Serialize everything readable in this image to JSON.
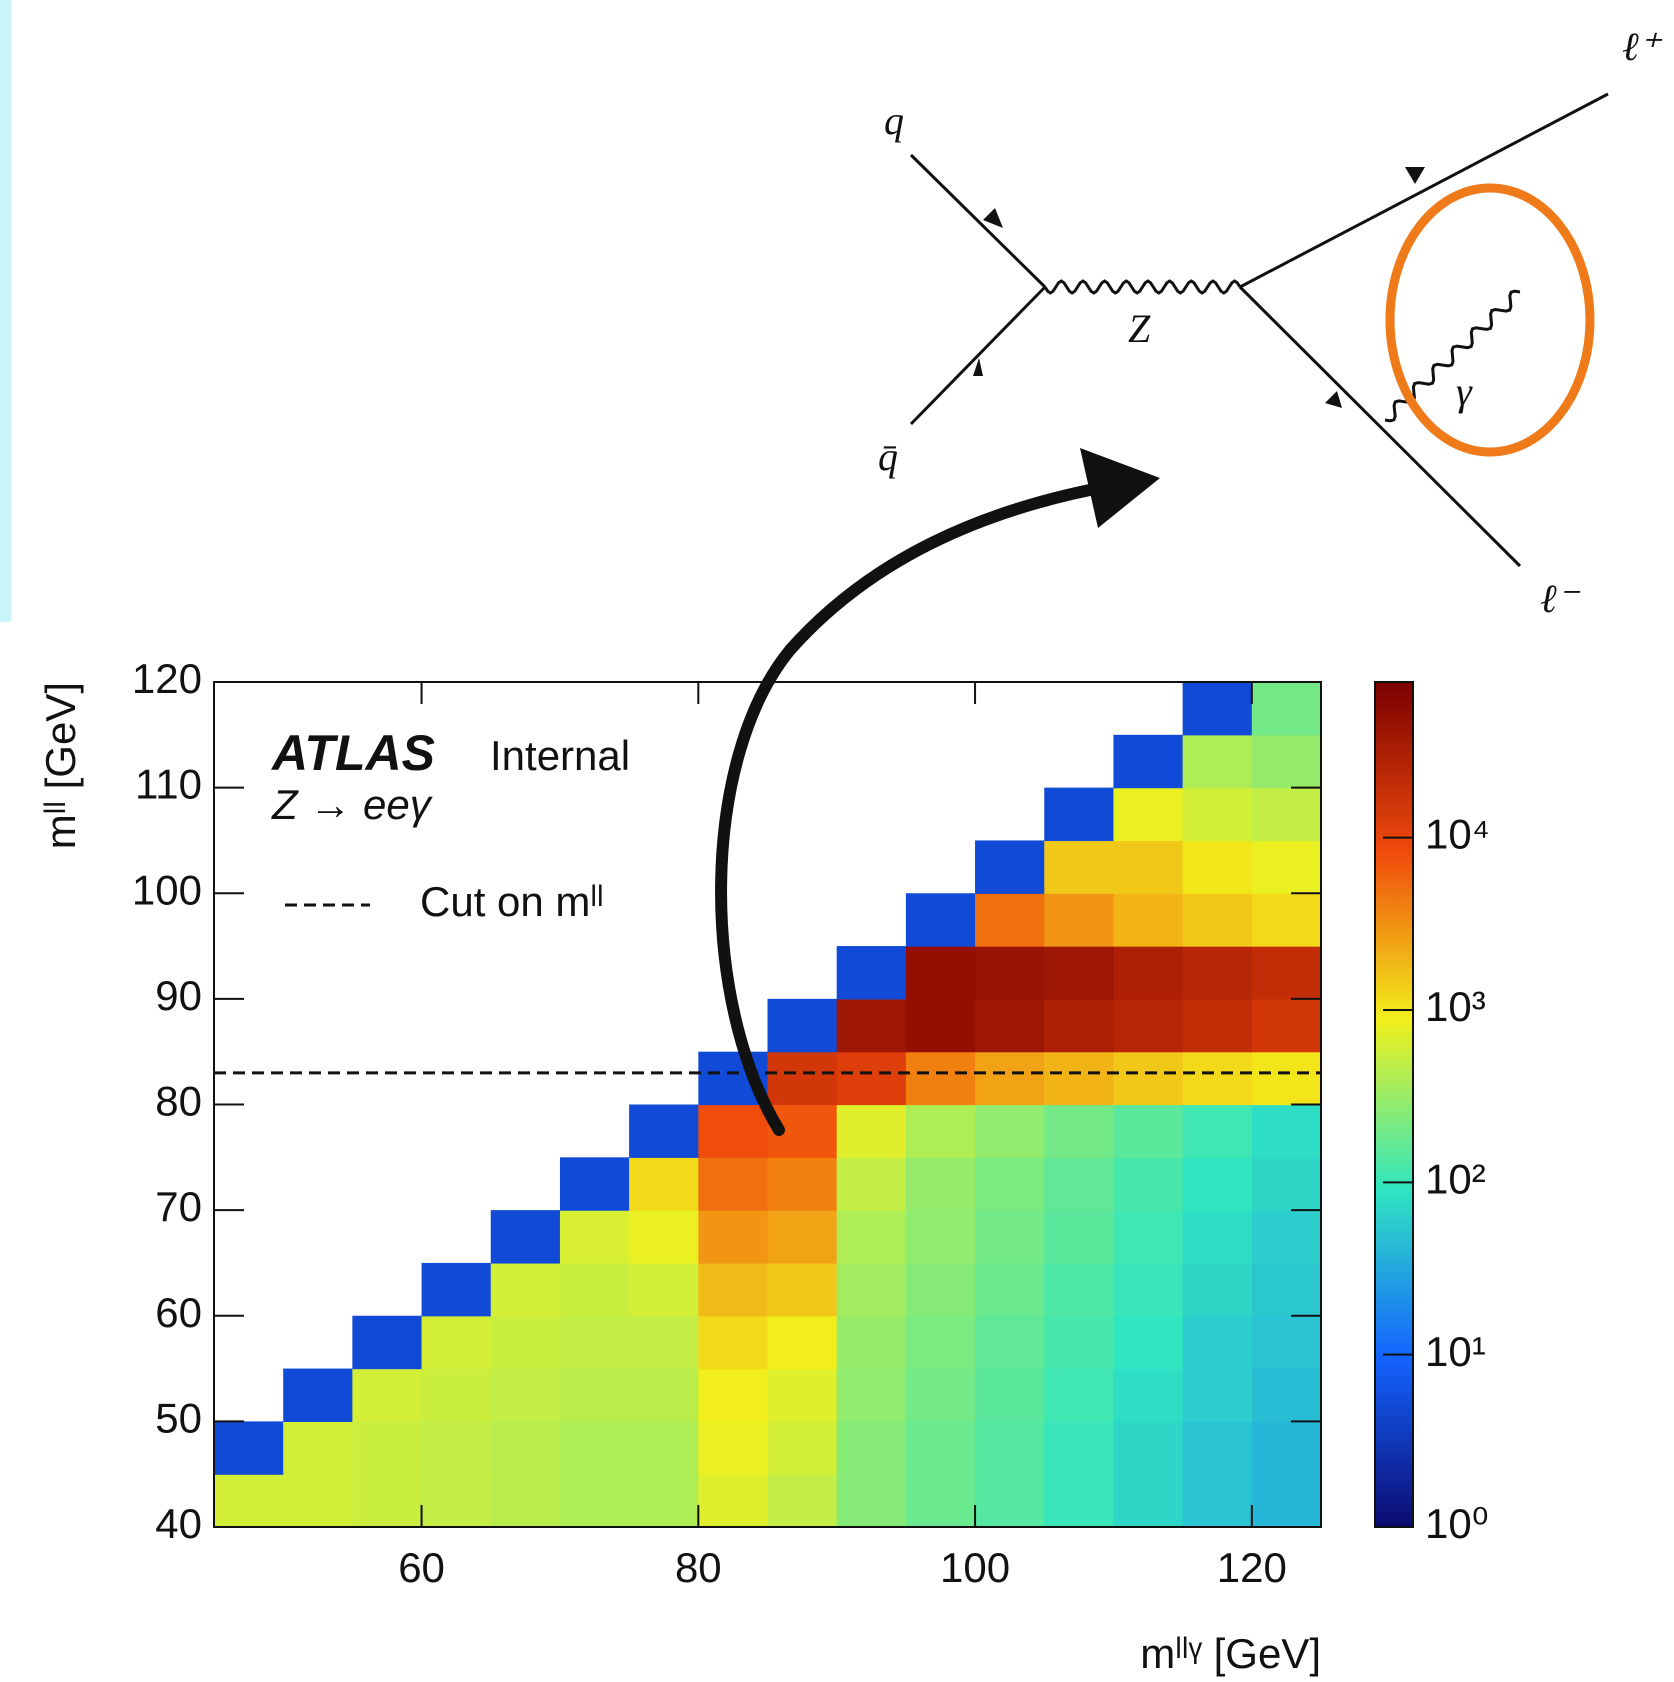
{
  "chart_data": {
    "type": "heatmap",
    "x_label": "mˡˡᵞ [GeV]",
    "y_label": "mˡˡ [GeV]",
    "atlas": "ATLAS",
    "atlas_status": "Internal",
    "process": "Z → eeγ",
    "cut": {
      "value": 83,
      "label": "Cut on mˡˡ"
    },
    "xlim": [
      45,
      125
    ],
    "ylim": [
      40,
      120
    ],
    "xticks": [
      60,
      80,
      100,
      120
    ],
    "yticks": [
      40,
      50,
      60,
      70,
      80,
      90,
      100,
      110,
      120
    ],
    "x_bins": [
      45,
      50,
      55,
      60,
      65,
      70,
      75,
      80,
      85,
      90,
      95,
      100,
      105,
      110,
      115,
      120,
      125
    ],
    "y_bins": [
      40,
      45,
      50,
      55,
      60,
      65,
      70,
      75,
      80,
      85,
      90,
      95,
      100,
      105,
      110,
      115,
      120
    ],
    "z": [
      [
        600,
        600,
        550,
        500,
        450,
        400,
        400,
        700,
        500,
        250,
        180,
        140,
        100,
        70,
        50,
        40
      ],
      [
        5,
        600,
        550,
        500,
        450,
        400,
        400,
        800,
        600,
        250,
        180,
        140,
        100,
        70,
        50,
        40
      ],
      [
        null,
        5,
        600,
        550,
        500,
        450,
        450,
        900,
        700,
        280,
        200,
        150,
        110,
        80,
        60,
        45
      ],
      [
        null,
        null,
        5,
        600,
        550,
        500,
        500,
        1200,
        900,
        300,
        220,
        160,
        120,
        90,
        60,
        50
      ],
      [
        null,
        null,
        null,
        5,
        600,
        550,
        600,
        1800,
        1500,
        350,
        250,
        180,
        130,
        100,
        70,
        55
      ],
      [
        null,
        null,
        null,
        null,
        5,
        650,
        800,
        3000,
        2500,
        400,
        280,
        200,
        150,
        110,
        80,
        60
      ],
      [
        null,
        null,
        null,
        null,
        null,
        5,
        1200,
        5000,
        4000,
        500,
        300,
        220,
        160,
        120,
        90,
        70
      ],
      [
        null,
        null,
        null,
        null,
        null,
        null,
        5,
        8000,
        7000,
        700,
        400,
        280,
        200,
        150,
        110,
        80
      ],
      [
        null,
        null,
        null,
        null,
        null,
        null,
        null,
        5,
        15000,
        12000,
        4000,
        2500,
        2000,
        1500,
        1200,
        1000
      ],
      [
        null,
        null,
        null,
        null,
        null,
        null,
        null,
        null,
        5,
        40000,
        50000,
        40000,
        30000,
        25000,
        20000,
        15000
      ],
      [
        null,
        null,
        null,
        null,
        null,
        null,
        null,
        null,
        null,
        5,
        50000,
        45000,
        40000,
        30000,
        25000,
        20000
      ],
      [
        null,
        null,
        null,
        null,
        null,
        null,
        null,
        null,
        null,
        null,
        5,
        5000,
        3000,
        2000,
        1500,
        1200
      ],
      [
        null,
        null,
        null,
        null,
        null,
        null,
        null,
        null,
        null,
        null,
        null,
        5,
        1500,
        1500,
        1000,
        800
      ],
      [
        null,
        null,
        null,
        null,
        null,
        null,
        null,
        null,
        null,
        null,
        null,
        null,
        5,
        800,
        600,
        500
      ],
      [
        null,
        null,
        null,
        null,
        null,
        null,
        null,
        null,
        null,
        null,
        null,
        null,
        null,
        5,
        400,
        300
      ],
      [
        null,
        null,
        null,
        null,
        null,
        null,
        null,
        null,
        null,
        null,
        null,
        null,
        null,
        null,
        5,
        200
      ]
    ],
    "zlim": [
      1,
      80000
    ],
    "z_log": true,
    "zticks": [
      {
        "value": 1,
        "label": "10⁰"
      },
      {
        "value": 10,
        "label": "10¹"
      },
      {
        "value": 100,
        "label": "10²"
      },
      {
        "value": 1000,
        "label": "10³"
      },
      {
        "value": 10000,
        "label": "10⁴"
      }
    ],
    "colormap": [
      "#0b0b70",
      "#1463ff",
      "#30e6c0",
      "#f2f01c",
      "#f04a0c",
      "#7a0000"
    ]
  },
  "diagram": {
    "labels": {
      "q": "q",
      "qbar": "q̄",
      "z": "Z",
      "gamma": "γ",
      "lplus": "ℓ⁺",
      "lminus": "ℓ⁻"
    }
  }
}
